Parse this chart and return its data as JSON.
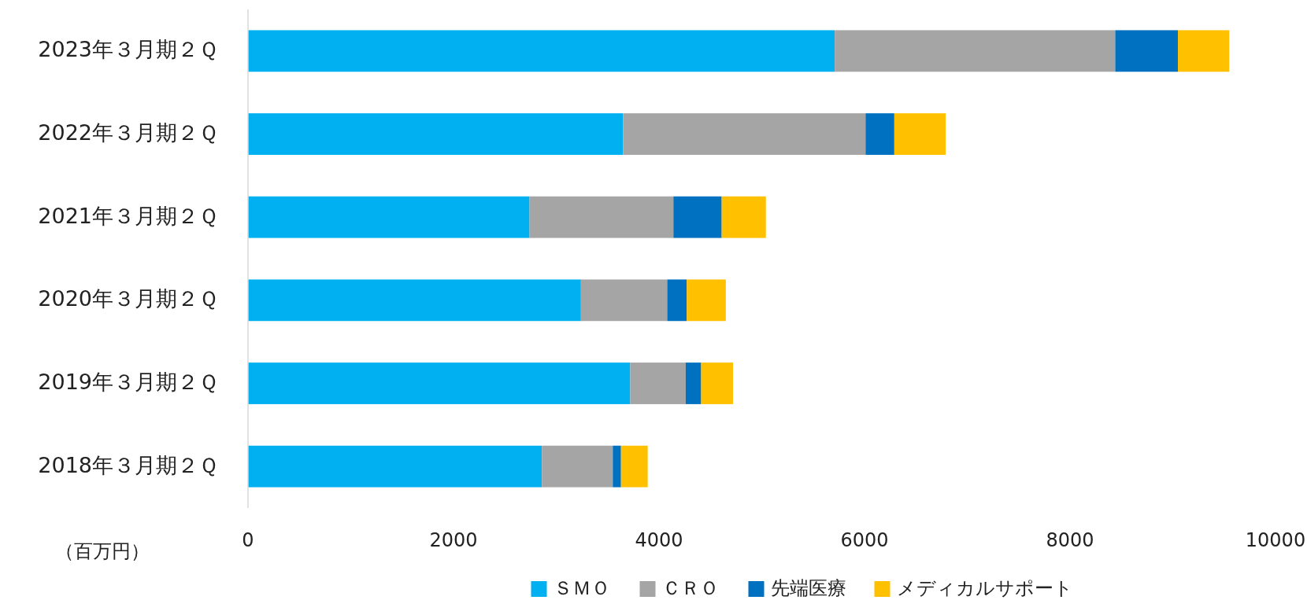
{
  "chart_data": {
    "type": "bar",
    "orientation": "horizontal",
    "stacked": true,
    "categories": [
      "2023年３月期２Ｑ",
      "2022年３月期２Ｑ",
      "2021年３月期２Ｑ",
      "2020年３月期２Ｑ",
      "2019年３月期２Ｑ",
      "2018年３月期２Ｑ"
    ],
    "series": [
      {
        "name": "ＳＭＯ",
        "color": "#00b0f0",
        "values": [
          5710,
          3650,
          2740,
          3240,
          3720,
          2860
        ]
      },
      {
        "name": "ＣＲＯ",
        "color": "#a5a5a5",
        "values": [
          2730,
          2360,
          1400,
          840,
          540,
          690
        ]
      },
      {
        "name": "先端医療",
        "color": "#0070c0",
        "values": [
          610,
          280,
          470,
          190,
          150,
          80
        ]
      },
      {
        "name": "メディカルサポート",
        "color": "#ffc000",
        "values": [
          500,
          500,
          430,
          380,
          310,
          260
        ]
      }
    ],
    "xlim": [
      0,
      10000
    ],
    "xticks": [
      0,
      2000,
      4000,
      6000,
      8000,
      10000
    ],
    "legend": "bottom",
    "annotations": [
      "（百万円）"
    ]
  }
}
